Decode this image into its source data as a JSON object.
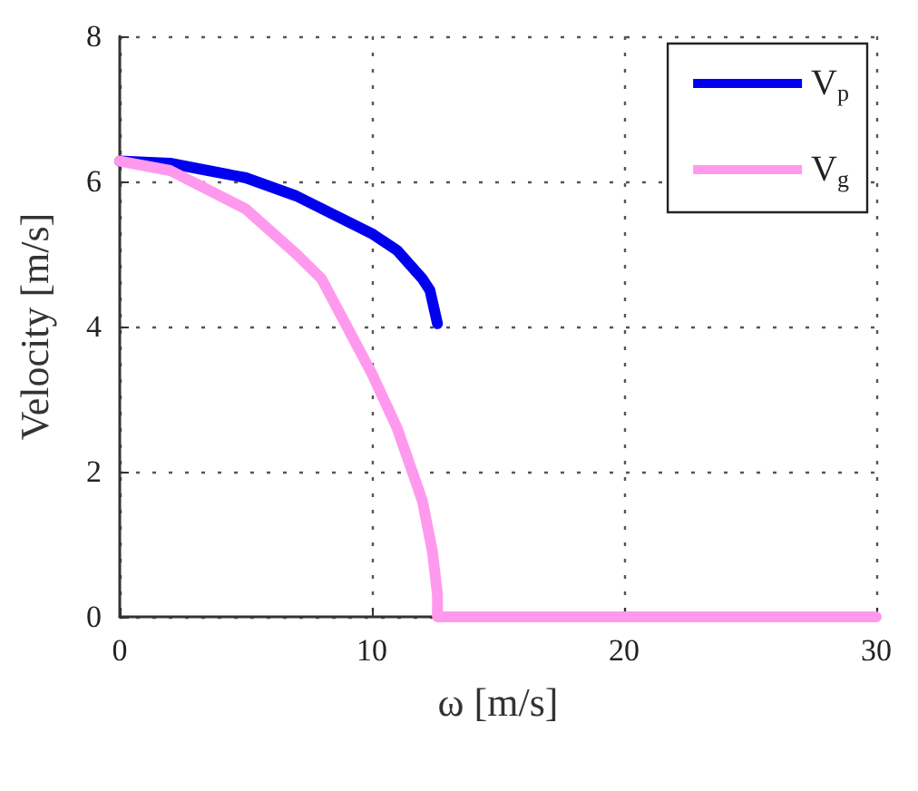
{
  "chart_data": {
    "type": "line",
    "xlabel": "ω [m/s]",
    "ylabel": "Velocity [m/s]",
    "xlim": [
      0,
      30
    ],
    "xticks": [
      0,
      10,
      20,
      30
    ],
    "ylim": [
      0,
      8
    ],
    "yticks": [
      0,
      2,
      4,
      6,
      8
    ],
    "grid": true,
    "legend": "top right",
    "marker": "none",
    "line_style": "solid",
    "series": [
      {
        "name": "V$_{p}$",
        "color": "#0000ee",
        "x": [
          0,
          2,
          5,
          7,
          10,
          11,
          12,
          12.3,
          12.6
        ],
        "values": [
          6.28,
          6.25,
          6.05,
          5.8,
          5.28,
          5.05,
          4.66,
          4.5,
          4.04
        ]
      },
      {
        "name": "V$_{g}$",
        "color": "#ff99ee",
        "x": [
          0,
          2,
          5,
          7,
          8,
          10,
          11,
          12,
          12.4,
          12.6,
          12.6,
          30
        ],
        "values": [
          6.28,
          6.15,
          5.62,
          5.0,
          4.66,
          3.35,
          2.6,
          1.6,
          0.9,
          0.3,
          0,
          0
        ]
      }
    ]
  }
}
